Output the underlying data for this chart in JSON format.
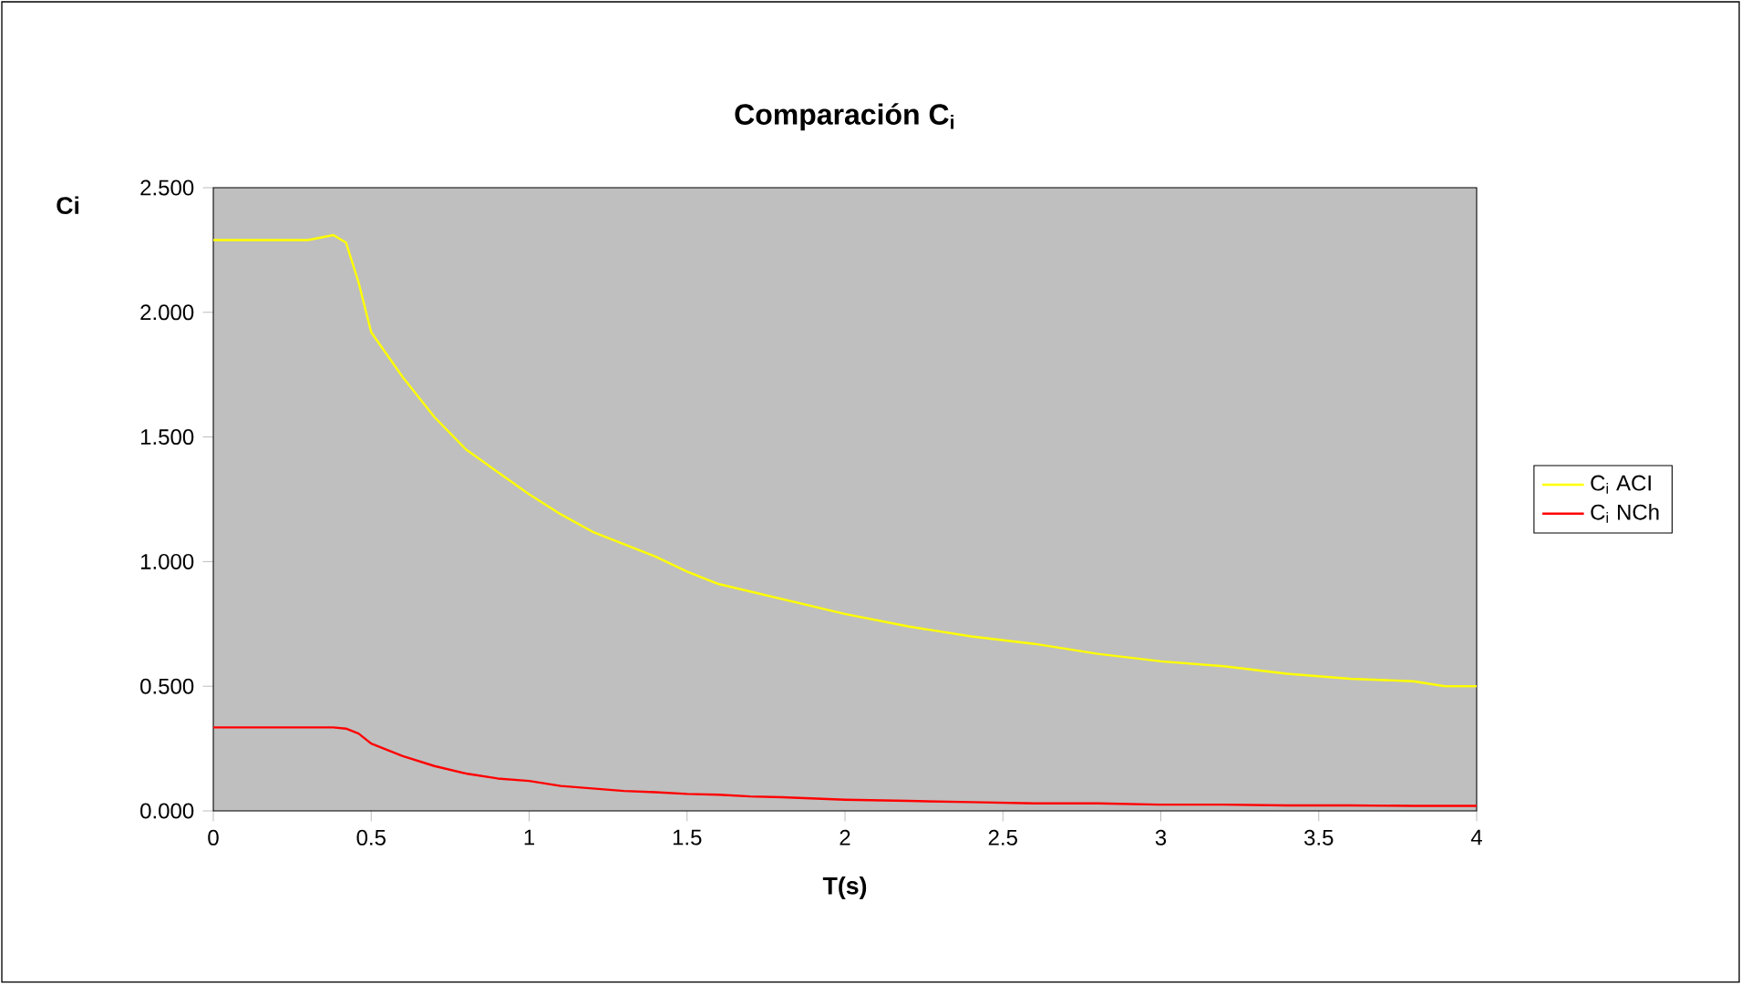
{
  "chart_data": {
    "type": "line",
    "title": "Comparación C$_{i}$",
    "xlabel": "T(s)",
    "ylabel": "Ci",
    "x": [
      0,
      0.1,
      0.2,
      0.3,
      0.38,
      0.42,
      0.46,
      0.5,
      0.6,
      0.7,
      0.8,
      0.9,
      1.0,
      1.1,
      1.2,
      1.3,
      1.4,
      1.5,
      1.6,
      1.7,
      1.8,
      1.9,
      2.0,
      2.2,
      2.4,
      2.6,
      2.8,
      3.0,
      3.2,
      3.4,
      3.6,
      3.8,
      3.9,
      4.0
    ],
    "series": [
      {
        "name": "C$_{i}$ ACI",
        "color": "#ffff00",
        "values": [
          2.29,
          2.29,
          2.29,
          2.29,
          2.31,
          2.28,
          2.12,
          1.92,
          1.74,
          1.58,
          1.45,
          1.36,
          1.27,
          1.19,
          1.12,
          1.07,
          1.02,
          0.96,
          0.91,
          0.88,
          0.85,
          0.82,
          0.79,
          0.74,
          0.7,
          0.67,
          0.63,
          0.6,
          0.58,
          0.55,
          0.53,
          0.52,
          0.5,
          0.5
        ]
      },
      {
        "name": "C$_{i}$ NCh",
        "color": "#ff0000",
        "values": [
          0.335,
          0.335,
          0.335,
          0.335,
          0.335,
          0.33,
          0.31,
          0.27,
          0.22,
          0.18,
          0.15,
          0.13,
          0.12,
          0.1,
          0.09,
          0.08,
          0.075,
          0.068,
          0.065,
          0.058,
          0.055,
          0.05,
          0.045,
          0.04,
          0.035,
          0.03,
          0.03,
          0.025,
          0.025,
          0.022,
          0.022,
          0.02,
          0.02,
          0.02
        ]
      }
    ],
    "xlim": [
      0,
      4
    ],
    "xticks": [
      0,
      0.5,
      1,
      1.5,
      2,
      2.5,
      3,
      3.5,
      4
    ],
    "ylim": [
      0,
      2.5
    ],
    "yticks": [
      {
        "value": 0,
        "label": "0.000"
      },
      {
        "value": 0.5,
        "label": "0.500"
      },
      {
        "value": 1,
        "label": "1.000"
      },
      {
        "value": 1.5,
        "label": "1.500"
      },
      {
        "value": 2,
        "label": "2.000"
      },
      {
        "value": 2.5,
        "label": "2.500"
      }
    ],
    "grid": false,
    "legend": "right",
    "line_style": "solid"
  }
}
